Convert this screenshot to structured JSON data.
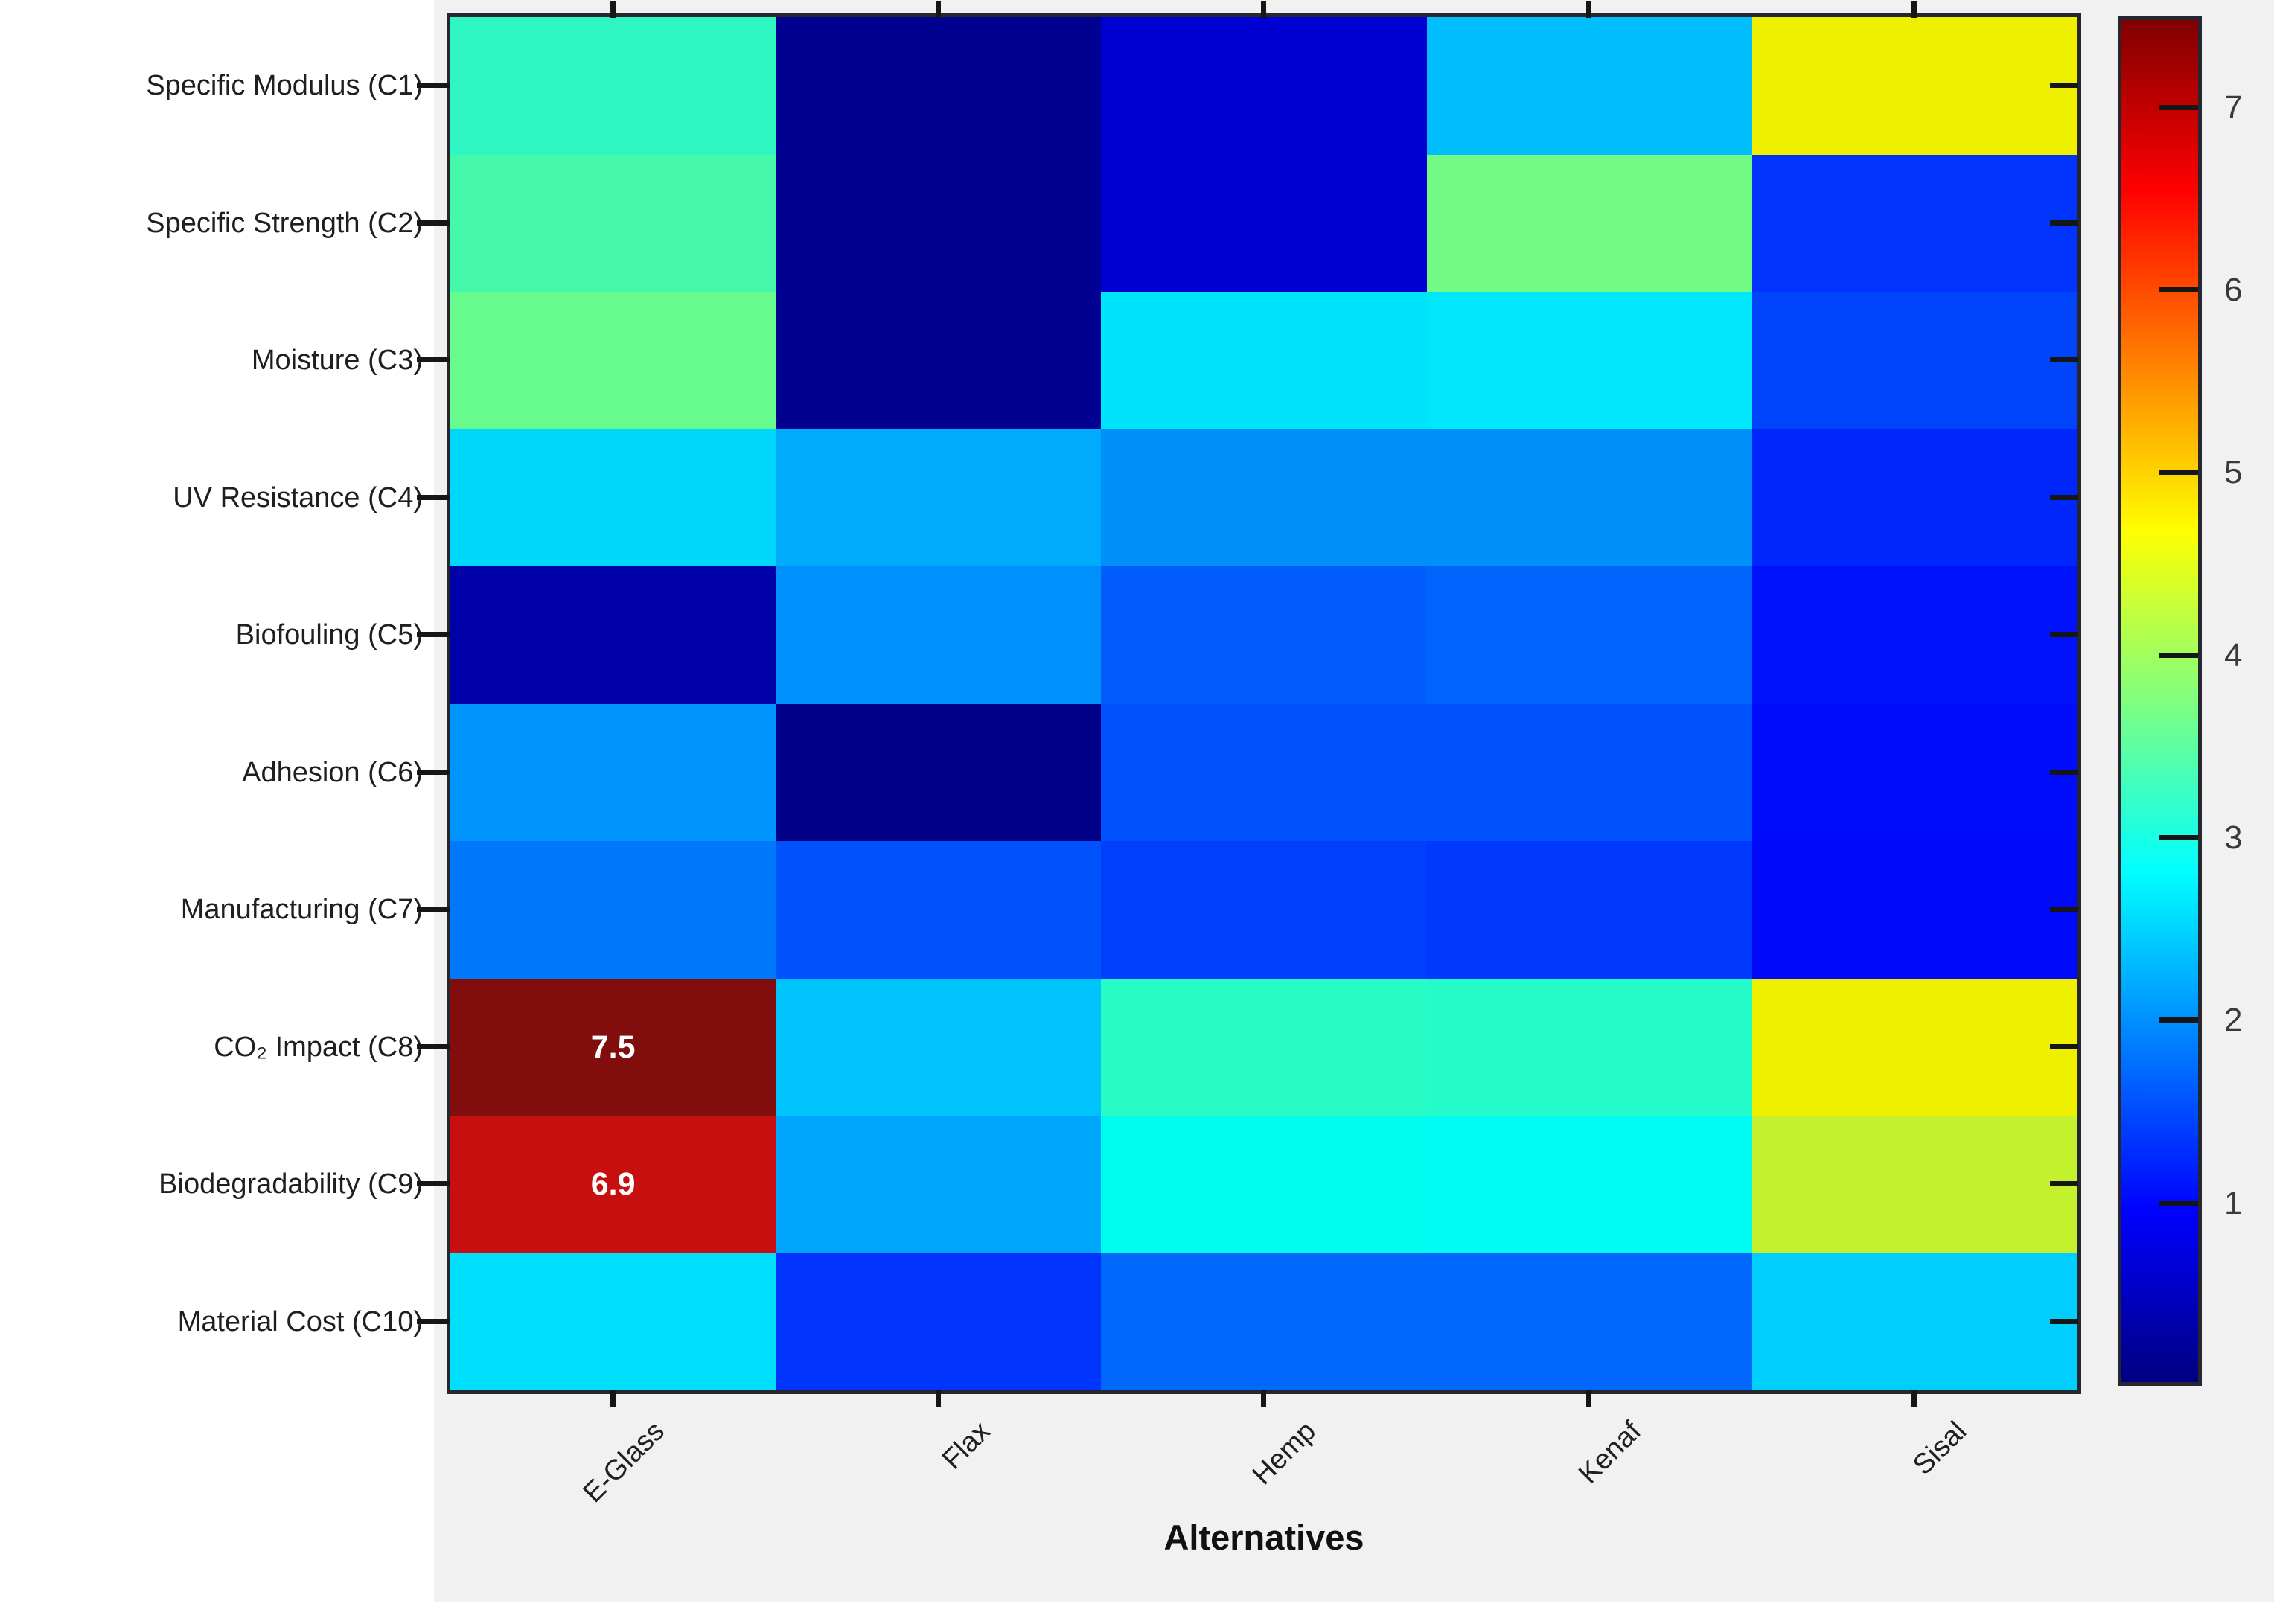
{
  "figure": {
    "background_color": "#f1f1f2",
    "axis_border_color": "#262630",
    "tick_color": "#161616",
    "label_color": "#1f1f1f"
  },
  "chart_data": {
    "type": "heatmap",
    "title": "",
    "xlabel": "Alternatives",
    "ylabel": "",
    "columns": [
      "E-Glass",
      "Flax",
      "Hemp",
      "Kenaf",
      "Sisal"
    ],
    "rows": [
      "Specific Modulus (C1)",
      "Specific Strength (C2)",
      "Moisture (C3)",
      "UV Resistance (C4)",
      "Biofouling (C5)",
      "Adhesion (C6)",
      "Manufacturing (C7)",
      "CO₂ Impact (C8)",
      "Biodegradability (C9)",
      "Material Cost (C10)"
    ],
    "values": [
      [
        3.2,
        0.1,
        0.6,
        2.3,
        4.6
      ],
      [
        3.4,
        0.1,
        0.6,
        3.6,
        1.3
      ],
      [
        3.7,
        0.1,
        2.6,
        2.6,
        1.4
      ],
      [
        2.5,
        2.2,
        2.0,
        2.0,
        1.2
      ],
      [
        0.3,
        2.0,
        1.6,
        1.7,
        1.1
      ],
      [
        2.0,
        0.1,
        1.5,
        1.5,
        1.0
      ],
      [
        1.8,
        1.5,
        1.4,
        1.3,
        1.0
      ],
      [
        7.5,
        2.4,
        3.2,
        3.2,
        4.6
      ],
      [
        6.9,
        2.1,
        2.9,
        2.9,
        4.3
      ],
      [
        2.6,
        1.3,
        1.7,
        1.7,
        2.5
      ]
    ],
    "cell_colors": [
      [
        "#2ff5c3",
        "#000091",
        "#0000d2",
        "#00befc",
        "#eef000"
      ],
      [
        "#45f7a9",
        "#000091",
        "#0000d2",
        "#72fc85",
        "#0034fc"
      ],
      [
        "#67fb8d",
        "#000091",
        "#00e4fb",
        "#00e7fc",
        "#0045fc"
      ],
      [
        "#00d7fc",
        "#00aafc",
        "#0090f8",
        "#0090fa",
        "#0026fc"
      ],
      [
        "#0000a9",
        "#0092fc",
        "#005dfc",
        "#0063fc",
        "#0012fc"
      ],
      [
        "#0095fc",
        "#000089",
        "#0052fc",
        "#0052fc",
        "#000dfc"
      ],
      [
        "#0078fc",
        "#0052fc",
        "#0040fc",
        "#0039fc",
        "#0009f8"
      ],
      [
        "#820d0d",
        "#00c3fc",
        "#27fcc4",
        "#23fcc9",
        "#eef000"
      ],
      [
        "#c80f0f",
        "#00a5fc",
        "#00fcee",
        "#00fcf4",
        "#c3f12e"
      ],
      [
        "#00e0fc",
        "#0034fc",
        "#0069fc",
        "#0066fc",
        "#00cefc"
      ]
    ],
    "cell_labels": [
      {
        "row": 7,
        "col": 0,
        "text": "7.5"
      },
      {
        "row": 8,
        "col": 0,
        "text": "6.9"
      }
    ],
    "colorbar": {
      "colormap": "jet",
      "min": 0,
      "max": 7.5,
      "ticks": [
        "7",
        "6",
        "5",
        "4",
        "3",
        "2",
        "1"
      ],
      "tick_values": [
        7,
        6,
        5,
        4,
        3,
        2,
        1
      ],
      "gradient_stops_bottom_to_top": [
        {
          "pos": "0%",
          "color": "#000080"
        },
        {
          "pos": "12.5%",
          "color": "#0000ff"
        },
        {
          "pos": "37.5%",
          "color": "#00ffff"
        },
        {
          "pos": "62.5%",
          "color": "#ffff00"
        },
        {
          "pos": "87.5%",
          "color": "#ff0000"
        },
        {
          "pos": "100%",
          "color": "#800000"
        }
      ]
    },
    "legend_position": "right-colorbar",
    "grid": false
  }
}
